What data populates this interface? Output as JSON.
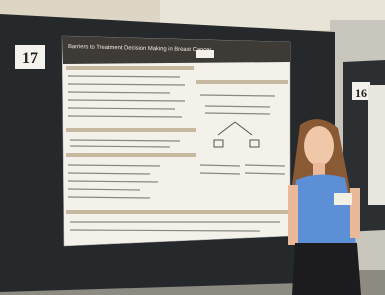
{
  "signs": [
    "17",
    "16"
  ],
  "poster": {
    "title": "Barriers to Treatment Decision Making in Breast Cancer"
  }
}
